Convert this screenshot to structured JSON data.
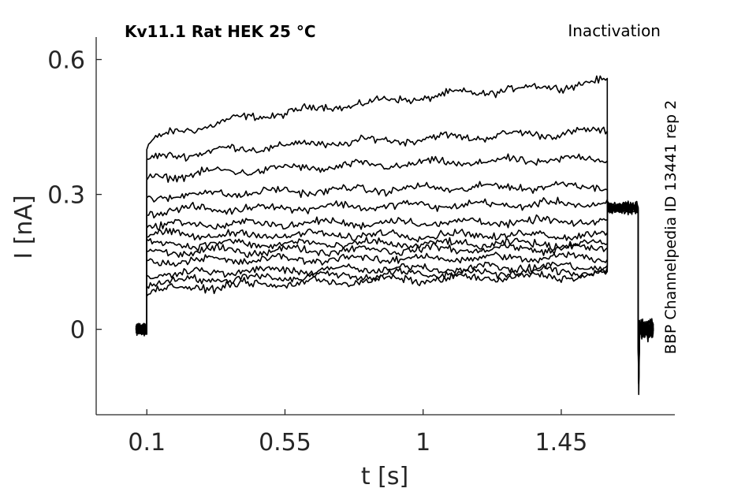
{
  "chart_data": {
    "type": "line",
    "title_left": "Kv11.1  Rat  HEK  25 °C",
    "title_right": "Inactivation",
    "side_label": "BBP Channelpedia ID 13441 rep 2",
    "xlabel": "t [s]",
    "ylabel": "I [nA]",
    "xlim": [
      -0.065,
      1.82
    ],
    "ylim": [
      -0.19,
      0.65
    ],
    "xticks": [
      0.1,
      0.55,
      1,
      1.45
    ],
    "xtick_labels": [
      "0.1",
      "0.55",
      "1",
      "1.45"
    ],
    "yticks": [
      0,
      0.3,
      0.6
    ],
    "ytick_labels": [
      "0",
      "0.3",
      "0.6"
    ],
    "grid": false,
    "legend": "none",
    "line_color": "#000000",
    "step_on": 0.1,
    "step_off": 1.6,
    "x_start": 0.065,
    "x_end": 1.75,
    "series": [
      {
        "pre": 0.0,
        "start": 0.4,
        "end": 0.55,
        "post": 0.27
      },
      {
        "pre": 0.0,
        "start": 0.37,
        "end": 0.44,
        "post": 0.27
      },
      {
        "pre": 0.0,
        "start": 0.33,
        "end": 0.38,
        "post": 0.27
      },
      {
        "pre": 0.0,
        "start": 0.29,
        "end": 0.32,
        "post": 0.27
      },
      {
        "pre": 0.0,
        "start": 0.26,
        "end": 0.28,
        "post": 0.27
      },
      {
        "pre": 0.0,
        "start": 0.23,
        "end": 0.24,
        "post": 0.27
      },
      {
        "pre": 0.0,
        "start": 0.21,
        "end": 0.21,
        "post": 0.27
      },
      {
        "pre": 0.0,
        "start": 0.19,
        "end": 0.19,
        "post": 0.27
      },
      {
        "pre": 0.0,
        "start": 0.17,
        "end": 0.18,
        "post": 0.27
      },
      {
        "pre": 0.0,
        "start": 0.15,
        "end": 0.16,
        "post": 0.27
      },
      {
        "pre": 0.0,
        "start": 0.12,
        "end": 0.14,
        "post": 0.27
      },
      {
        "pre": 0.0,
        "start": 0.1,
        "end": 0.13,
        "post": 0.27
      },
      {
        "pre": 0.0,
        "start": 0.08,
        "end": 0.12,
        "post": 0.27
      }
    ]
  }
}
